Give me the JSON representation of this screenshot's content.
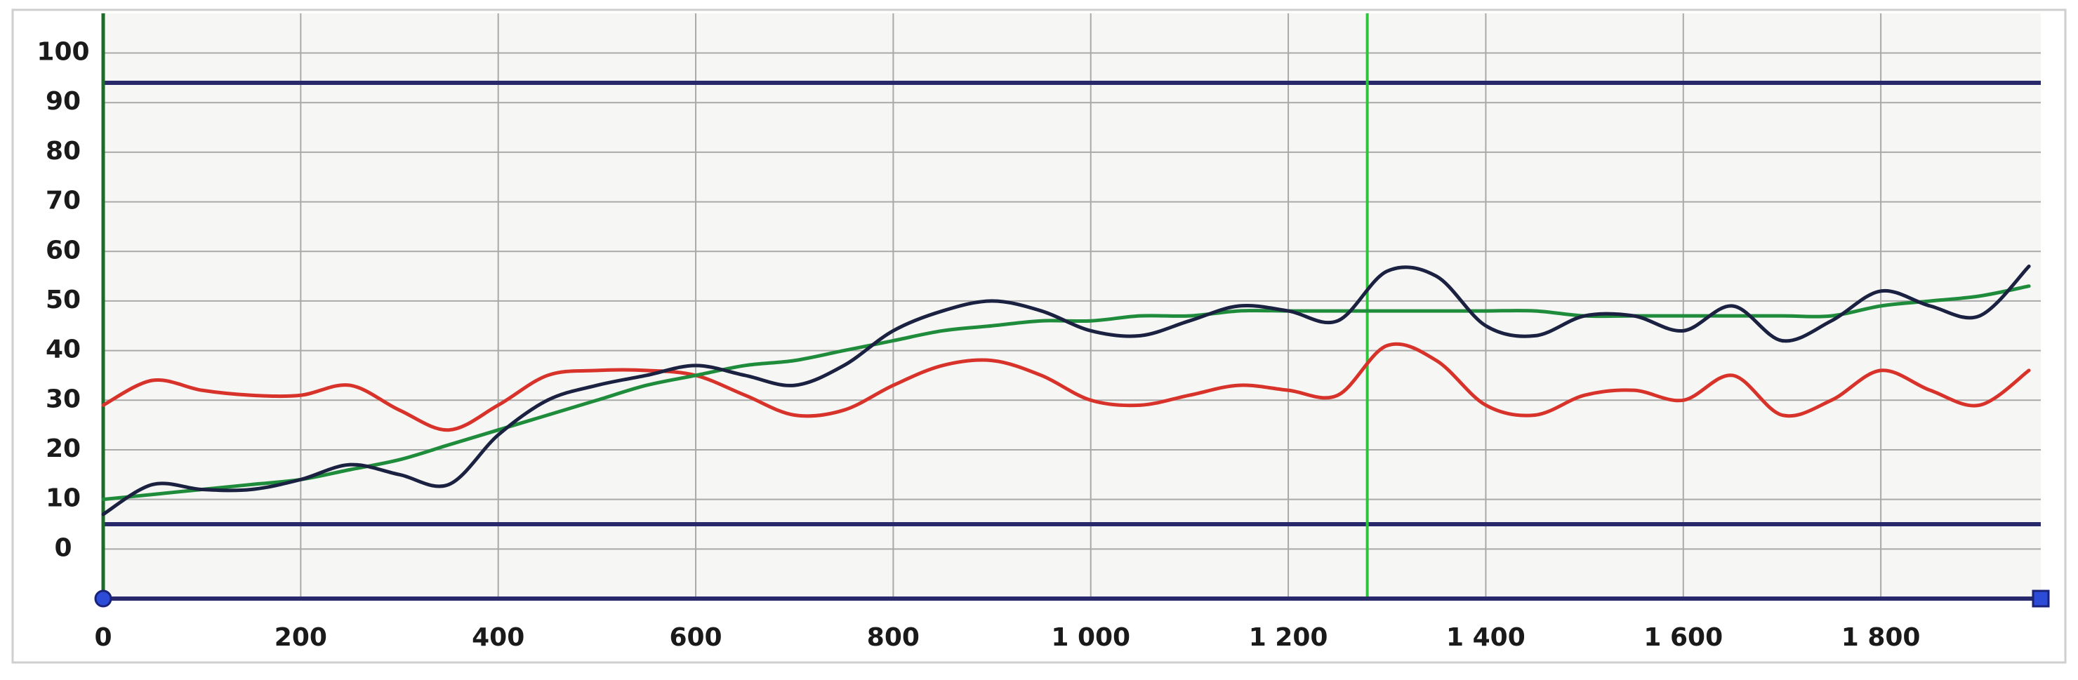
{
  "chart_data": {
    "type": "line",
    "x": [
      0,
      50,
      100,
      150,
      200,
      250,
      300,
      350,
      400,
      450,
      500,
      550,
      600,
      650,
      700,
      750,
      800,
      850,
      900,
      950,
      1000,
      1050,
      1100,
      1150,
      1200,
      1250,
      1300,
      1350,
      1400,
      1450,
      1500,
      1550,
      1600,
      1650,
      1700,
      1750,
      1800,
      1850,
      1900,
      1950
    ],
    "series": [
      {
        "color": "#d8332a",
        "values": [
          29,
          34,
          32,
          31,
          31,
          33,
          28,
          24,
          29,
          35,
          36,
          36,
          35,
          31,
          27,
          28,
          33,
          37,
          38,
          35,
          30,
          29,
          31,
          33,
          32,
          31,
          41,
          38,
          29,
          27,
          31,
          32,
          30,
          35,
          27,
          30,
          36,
          32,
          29,
          36
        ]
      },
      {
        "color": "#1f8c3c",
        "values": [
          10,
          11,
          12,
          13,
          14,
          16,
          18,
          21,
          24,
          27,
          30,
          33,
          35,
          37,
          38,
          40,
          42,
          44,
          45,
          46,
          46,
          47,
          47,
          48,
          48,
          48,
          48,
          48,
          48,
          48,
          47,
          47,
          47,
          47,
          47,
          47,
          49,
          50,
          51,
          53
        ]
      },
      {
        "color": "#1b2140",
        "values": [
          7,
          13,
          12,
          12,
          14,
          17,
          15,
          13,
          23,
          30,
          33,
          35,
          37,
          35,
          33,
          37,
          44,
          48,
          50,
          48,
          44,
          43,
          46,
          49,
          48,
          46,
          56,
          55,
          45,
          43,
          47,
          47,
          44,
          49,
          42,
          46,
          52,
          49,
          47,
          57
        ]
      }
    ],
    "xlim": [
      0,
      1962
    ],
    "ylim": [
      -10,
      108
    ],
    "xticks": [
      0,
      200,
      400,
      600,
      800,
      {
        "value": 1000,
        "label": "1 000"
      },
      {
        "value": 1200,
        "label": "1 200"
      },
      {
        "value": 1400,
        "label": "1 400"
      },
      {
        "value": 1600,
        "label": "1 600"
      },
      {
        "value": 1800,
        "label": "1 800"
      }
    ],
    "yticks": [
      0,
      10,
      20,
      30,
      40,
      50,
      60,
      70,
      80,
      90,
      100
    ],
    "hlines": [
      94,
      5
    ],
    "hline_color": "#27296a",
    "vline": 1280,
    "vline_color": "#2bc43a",
    "grid": true
  }
}
